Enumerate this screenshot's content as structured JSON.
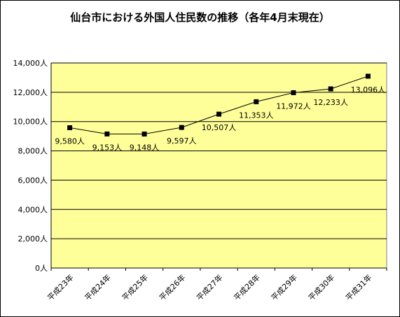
{
  "title": "仙台市における外国人住民数の推移（各年4月末現在）",
  "chart_data": {
    "type": "line",
    "title": "仙台市における外国人住民数の推移（各年4月末現在）",
    "categories": [
      "平成23年",
      "平成24年",
      "平成25年",
      "平成26年",
      "平成27年",
      "平成28年",
      "平成29年",
      "平成30年",
      "平成31年"
    ],
    "series": [
      {
        "values": [
          9580,
          9153,
          9148,
          9597,
          10507,
          11353,
          11972,
          12233,
          13096
        ]
      }
    ],
    "data_labels": [
      "9,580人",
      "9,153人",
      "9,148人",
      "9,597人",
      "10,507人",
      "11,353人",
      "11,972人",
      "12,233人",
      "13,096人"
    ],
    "ylim": [
      0,
      14000
    ],
    "yticks": [
      0,
      2000,
      4000,
      6000,
      8000,
      10000,
      12000,
      14000
    ],
    "ytick_labels": [
      "0人",
      "2,000人",
      "4,000人",
      "6,000人",
      "8,000人",
      "10,000人",
      "12,000人",
      "14,000人"
    ],
    "grid": true,
    "colors": {
      "plot_bg": "#ffff99",
      "line": "#000000",
      "marker": "#000000",
      "grid": "#000000"
    }
  }
}
